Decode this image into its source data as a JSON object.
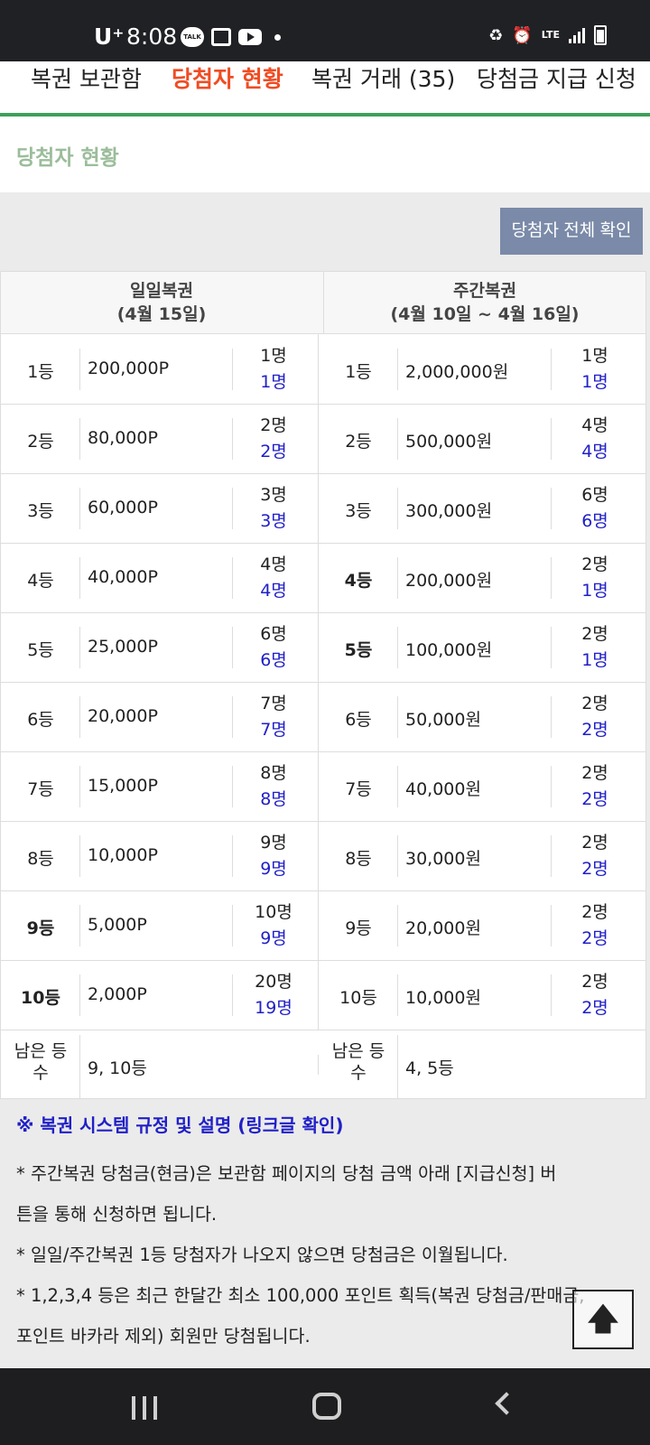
{
  "status_bar": {
    "carrier": "U⁺",
    "time": "8:08",
    "kakao_badge": "TALK",
    "network": "LTE"
  },
  "tabs": [
    {
      "label": "복권 보관함"
    },
    {
      "label": "당첨자 현황"
    },
    {
      "label": "복권 거래 (35)"
    },
    {
      "label": "당첨금 지급 신청"
    }
  ],
  "page_title": "당첨자 현황",
  "all_winners_button": "당첨자 전체 확인",
  "table": {
    "daily_header_line1": "일일복권",
    "daily_header_line2": "(4월 15일)",
    "weekly_header_line1": "주간복권",
    "weekly_header_line2": "(4월 10일 ~ 4월 16일)",
    "rows": [
      {
        "d_rank": "1등",
        "d_prize": "200,000P",
        "d_total": "1명",
        "d_won": "1명",
        "w_rank": "1등",
        "w_prize": "2,000,000원",
        "w_total": "1명",
        "w_won": "1명"
      },
      {
        "d_rank": "2등",
        "d_prize": "80,000P",
        "d_total": "2명",
        "d_won": "2명",
        "w_rank": "2등",
        "w_prize": "500,000원",
        "w_total": "4명",
        "w_won": "4명"
      },
      {
        "d_rank": "3등",
        "d_prize": "60,000P",
        "d_total": "3명",
        "d_won": "3명",
        "w_rank": "3등",
        "w_prize": "300,000원",
        "w_total": "6명",
        "w_won": "6명"
      },
      {
        "d_rank": "4등",
        "d_prize": "40,000P",
        "d_total": "4명",
        "d_won": "4명",
        "w_rank": "4등",
        "w_prize": "200,000원",
        "w_total": "2명",
        "w_won": "1명"
      },
      {
        "d_rank": "5등",
        "d_prize": "25,000P",
        "d_total": "6명",
        "d_won": "6명",
        "w_rank": "5등",
        "w_prize": "100,000원",
        "w_total": "2명",
        "w_won": "1명"
      },
      {
        "d_rank": "6등",
        "d_prize": "20,000P",
        "d_total": "7명",
        "d_won": "7명",
        "w_rank": "6등",
        "w_prize": "50,000원",
        "w_total": "2명",
        "w_won": "2명"
      },
      {
        "d_rank": "7등",
        "d_prize": "15,000P",
        "d_total": "8명",
        "d_won": "8명",
        "w_rank": "7등",
        "w_prize": "40,000원",
        "w_total": "2명",
        "w_won": "2명"
      },
      {
        "d_rank": "8등",
        "d_prize": "10,000P",
        "d_total": "9명",
        "d_won": "9명",
        "w_rank": "8등",
        "w_prize": "30,000원",
        "w_total": "2명",
        "w_won": "2명"
      },
      {
        "d_rank": "9등",
        "d_prize": "5,000P",
        "d_total": "10명",
        "d_won": "9명",
        "w_rank": "9등",
        "w_prize": "20,000원",
        "w_total": "2명",
        "w_won": "2명"
      },
      {
        "d_rank": "10등",
        "d_prize": "2,000P",
        "d_total": "20명",
        "d_won": "19명",
        "w_rank": "10등",
        "w_prize": "10,000원",
        "w_total": "2명",
        "w_won": "2명"
      }
    ],
    "remaining_label_line1": "남은 등",
    "remaining_label_line2": "수",
    "daily_remaining": "9, 10등",
    "weekly_remaining": "4, 5등"
  },
  "notes": {
    "title": "※ 복권 시스템 규정 및 설명 (링크글 확인)",
    "line1": "* 주간복권 당첨금(현금)은 보관함 페이지의 당첨 금액 아래 [지급신청] 버",
    "line2": "튼을 통해 신청하면 됩니다.",
    "line3": "* 일일/주간복권 1등 당첨자가 나오지 않으면 당첨금은 이월됩니다.",
    "line4": "* 1,2,3,4 등은 최근 한달간 최소 100,000 포인트 획득(복권 당첨금/판매금,",
    "line5": "포인트 바카라 제외) 회원만 당첨됩니다."
  },
  "scroll_top_icon": "arrow-up-icon",
  "colors": {
    "active_tab": "#f04c23",
    "green_line": "#3fa05a",
    "title_green": "#9bbd9a",
    "button_bg": "#7a8aa8",
    "win_blue": "#2020c8"
  }
}
